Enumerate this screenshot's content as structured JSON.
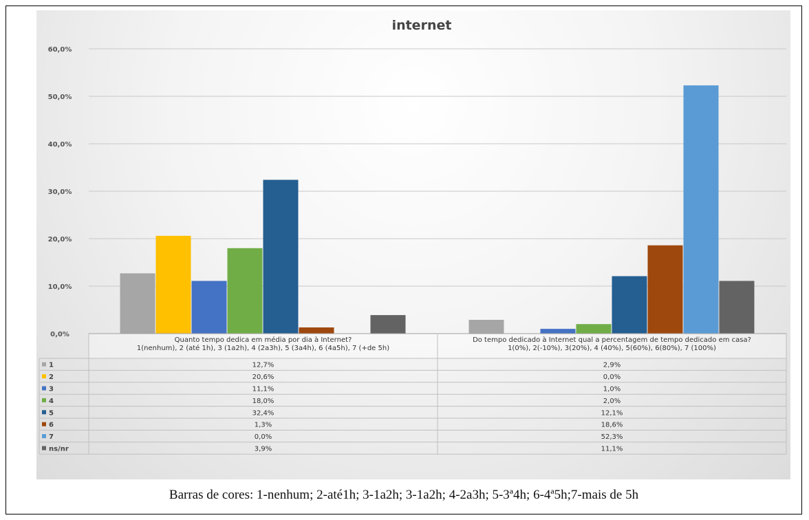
{
  "caption": "Barras de cores: 1-nenhum; 2-até1h; 3-1a2h; 3-1a2h; 4-2a3h; 5-3ª4h; 6-4ª5h;7-mais de 5h",
  "chart_data": {
    "type": "bar",
    "title": "internet",
    "categories": [
      [
        "Quanto tempo dedica em média por dia à Internet?",
        "1(nenhum), 2 (até 1h), 3 (1a2h), 4 (2a3h), 5 (3a4h), 6 (4a5h), 7 (+de 5h)"
      ],
      [
        "Do tempo dedicado à Internet qual a percentagem de tempo dedicado em casa?",
        "1(0%), 2(-10%), 3(20%), 4 (40%), 5(60%), 6(80%), 7 (100%)"
      ]
    ],
    "ylim": [
      0,
      60
    ],
    "yticks": [
      "0,0%",
      "10,0%",
      "20,0%",
      "30,0%",
      "40,0%",
      "50,0%",
      "60,0%"
    ],
    "grid": true,
    "legend_placement": "table-left",
    "series": [
      {
        "name": "1",
        "color": "#a6a6a6",
        "values": [
          12.7,
          2.9
        ],
        "labels": [
          "12,7%",
          "2,9%"
        ]
      },
      {
        "name": "2",
        "color": "#ffc000",
        "values": [
          20.6,
          0.0
        ],
        "labels": [
          "20,6%",
          "0,0%"
        ]
      },
      {
        "name": "3",
        "color": "#4472c4",
        "values": [
          11.1,
          1.0
        ],
        "labels": [
          "11,1%",
          "1,0%"
        ]
      },
      {
        "name": "4",
        "color": "#70ad47",
        "values": [
          18.0,
          2.0
        ],
        "labels": [
          "18,0%",
          "2,0%"
        ]
      },
      {
        "name": "5",
        "color": "#255e91",
        "values": [
          32.4,
          12.1
        ],
        "labels": [
          "32,4%",
          "12,1%"
        ]
      },
      {
        "name": "6",
        "color": "#9e480e",
        "values": [
          1.3,
          18.6
        ],
        "labels": [
          "1,3%",
          "18,6%"
        ]
      },
      {
        "name": "7",
        "color": "#5b9bd5",
        "values": [
          0.0,
          52.3
        ],
        "labels": [
          "0,0%",
          "52,3%"
        ]
      },
      {
        "name": "ns/nr",
        "color": "#636363",
        "values": [
          3.9,
          11.1
        ],
        "labels": [
          "3,9%",
          "11,1%"
        ]
      }
    ]
  }
}
